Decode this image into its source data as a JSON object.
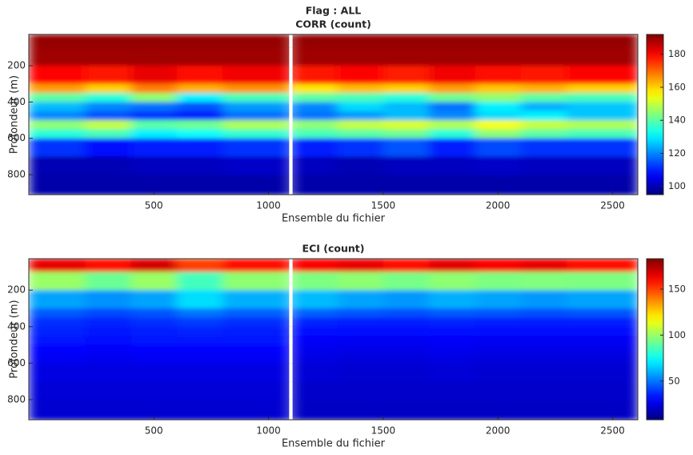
{
  "chart_data": [
    {
      "type": "heatmap",
      "suptitle": "Flag : ALL",
      "title": "CORR (count)",
      "xlabel": "Ensemble du fichier",
      "ylabel": "Profondeur (m)",
      "xlim": [
        -45,
        2610
      ],
      "ylim": [
        28,
        910
      ],
      "y_reversed": true,
      "xticks": [
        500,
        1000,
        1500,
        2000,
        2500
      ],
      "yticks": [
        200,
        400,
        600,
        800
      ],
      "colormap": "jet",
      "clim": [
        95,
        192
      ],
      "cticks": [
        100,
        120,
        140,
        160,
        180
      ],
      "x_edges": [
        -45,
        200,
        400,
        600,
        800,
        1090,
        1105,
        1300,
        1500,
        1700,
        1900,
        2100,
        2300,
        2610
      ],
      "y_edges": [
        28,
        100,
        200,
        300,
        350,
        400,
        450,
        500,
        550,
        600,
        700,
        800,
        910
      ],
      "z": [
        [
          190,
          190,
          190,
          190,
          190,
          null,
          190,
          190,
          190,
          190,
          190,
          190,
          190
        ],
        [
          189,
          189,
          189,
          189,
          189,
          null,
          189,
          189,
          189,
          189,
          189,
          189,
          189
        ],
        [
          180,
          178,
          182,
          179,
          181,
          null,
          178,
          180,
          177,
          181,
          179,
          178,
          180
        ],
        [
          165,
          160,
          168,
          163,
          166,
          null,
          158,
          162,
          160,
          165,
          161,
          163,
          160
        ],
        [
          140,
          135,
          145,
          130,
          138,
          null,
          140,
          138,
          135,
          142,
          145,
          140,
          138
        ],
        [
          125,
          120,
          118,
          115,
          122,
          null,
          120,
          128,
          125,
          118,
          130,
          124,
          126
        ],
        [
          120,
          115,
          112,
          110,
          118,
          null,
          118,
          122,
          125,
          120,
          128,
          130,
          126
        ],
        [
          145,
          150,
          140,
          142,
          148,
          null,
          145,
          150,
          152,
          148,
          155,
          150,
          148
        ],
        [
          135,
          138,
          130,
          132,
          136,
          null,
          138,
          140,
          142,
          135,
          145,
          140,
          138
        ],
        [
          112,
          108,
          110,
          110,
          112,
          null,
          110,
          112,
          115,
          110,
          114,
          112,
          112
        ],
        [
          100,
          100,
          101,
          101,
          102,
          null,
          101,
          100,
          101,
          101,
          102,
          101,
          101
        ],
        [
          99,
          99,
          99,
          99,
          99,
          null,
          99,
          99,
          99,
          99,
          99,
          99,
          99
        ]
      ]
    },
    {
      "type": "heatmap",
      "title": "ECI (count)",
      "xlabel": "Ensemble du fichier",
      "ylabel": "Profondeur (m)",
      "xlim": [
        -45,
        2610
      ],
      "ylim": [
        28,
        910
      ],
      "y_reversed": true,
      "xticks": [
        500,
        1000,
        1500,
        2000,
        2500
      ],
      "yticks": [
        200,
        400,
        600,
        800
      ],
      "colormap": "jet",
      "clim": [
        8,
        183
      ],
      "cticks": [
        50,
        100,
        150
      ],
      "x_edges": [
        -45,
        200,
        400,
        600,
        800,
        1090,
        1105,
        1300,
        1500,
        1700,
        1900,
        2100,
        2300,
        2610
      ],
      "y_edges": [
        28,
        100,
        200,
        300,
        350,
        400,
        450,
        500,
        550,
        600,
        700,
        800,
        910
      ],
      "z": [
        [
          165,
          160,
          168,
          150,
          160,
          null,
          162,
          165,
          160,
          166,
          162,
          165,
          160
        ],
        [
          100,
          92,
          100,
          85,
          98,
          null,
          95,
          98,
          94,
          98,
          95,
          96,
          95
        ],
        [
          58,
          55,
          58,
          68,
          60,
          null,
          62,
          58,
          56,
          60,
          58,
          56,
          58
        ],
        [
          45,
          42,
          44,
          50,
          46,
          null,
          46,
          44,
          43,
          45,
          44,
          43,
          44
        ],
        [
          38,
          36,
          38,
          40,
          38,
          null,
          36,
          35,
          35,
          36,
          35,
          35,
          35
        ],
        [
          36,
          34,
          35,
          36,
          35,
          null,
          32,
          31,
          31,
          32,
          31,
          31,
          31
        ],
        [
          34,
          32,
          33,
          33,
          33,
          null,
          29,
          28,
          28,
          29,
          28,
          28,
          28
        ],
        [
          30,
          29,
          30,
          30,
          30,
          null,
          27,
          26,
          26,
          27,
          26,
          26,
          26
        ],
        [
          28,
          27,
          28,
          28,
          28,
          null,
          25,
          24,
          24,
          25,
          24,
          24,
          24
        ],
        [
          25,
          25,
          25,
          25,
          25,
          null,
          23,
          22,
          22,
          23,
          22,
          22,
          22
        ],
        [
          23,
          23,
          23,
          23,
          23,
          null,
          21,
          21,
          21,
          21,
          21,
          21,
          21
        ],
        [
          22,
          22,
          22,
          22,
          22,
          null,
          20,
          20,
          20,
          20,
          20,
          20,
          20
        ]
      ]
    }
  ]
}
